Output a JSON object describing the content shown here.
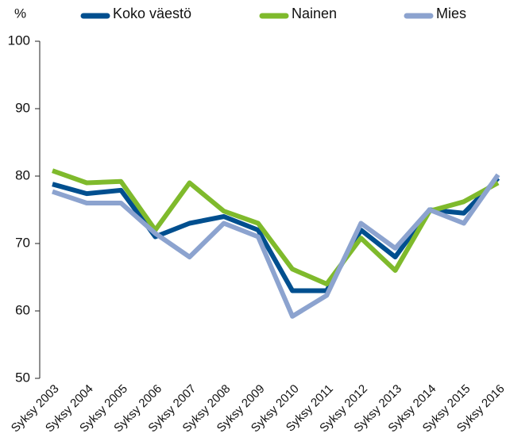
{
  "chart_data": {
    "type": "line",
    "y_label": "%",
    "categories": [
      "Syksy 2003",
      "Syksy 2004",
      "Syksy 2005",
      "Syksy 2006",
      "Syksy 2007",
      "Syksy 2008",
      "Syksy 2009",
      "Syksy 2010",
      "Syksy 2011",
      "Syksy 2012",
      "Syksy 2013",
      "Syksy 2014",
      "Syksy 2015",
      "Syksy 2016"
    ],
    "series": [
      {
        "name": "Koko väestö",
        "color": "#004f8f",
        "values": [
          78.8,
          77.4,
          77.9,
          71,
          73,
          74,
          72,
          63,
          63,
          72,
          68,
          75,
          74.5,
          79.7
        ]
      },
      {
        "name": "Nainen",
        "color": "#7fba2c",
        "values": [
          80.8,
          79,
          79.2,
          72,
          79,
          74.8,
          73,
          66.2,
          64,
          70.8,
          66,
          74.8,
          76.2,
          79
        ]
      },
      {
        "name": "Mies",
        "color": "#8ca3cf",
        "values": [
          77.7,
          76,
          76,
          71.5,
          68,
          73,
          71,
          59.2,
          62.3,
          73,
          69.3,
          75,
          73,
          80.2
        ]
      }
    ],
    "ylim": [
      50,
      100
    ],
    "yticks": [
      50,
      60,
      70,
      80,
      90,
      100
    ],
    "legend": "top"
  }
}
